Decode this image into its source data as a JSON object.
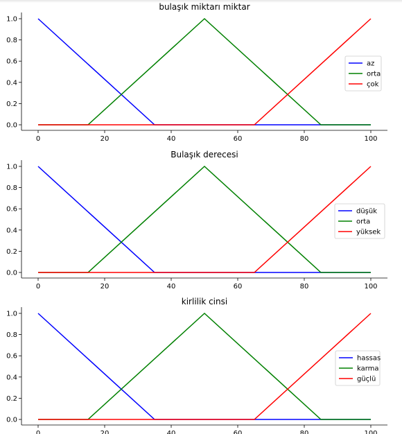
{
  "chart_data": [
    {
      "type": "line",
      "title": "bulaşık miktarı miktar",
      "x_ticks": [
        0,
        20,
        40,
        60,
        80,
        100
      ],
      "y_ticks": [
        "0.0",
        "0.2",
        "0.4",
        "0.6",
        "0.8",
        "1.0"
      ],
      "xlim": [
        0,
        100
      ],
      "ylim": [
        0,
        1
      ],
      "legend_position": "center-right",
      "series": [
        {
          "name": "az",
          "color": "#0000ff",
          "x": [
            0,
            35,
            100
          ],
          "y": [
            1,
            0,
            0
          ]
        },
        {
          "name": "orta",
          "color": "#008000",
          "x": [
            0,
            15,
            50,
            85,
            100
          ],
          "y": [
            0,
            0,
            1,
            0,
            0
          ]
        },
        {
          "name": "çok",
          "color": "#ff0000",
          "x": [
            0,
            65,
            100
          ],
          "y": [
            0,
            0,
            1
          ]
        }
      ]
    },
    {
      "type": "line",
      "title": "Bulaşık derecesi",
      "x_ticks": [
        0,
        20,
        40,
        60,
        80,
        100
      ],
      "y_ticks": [
        "0.0",
        "0.2",
        "0.4",
        "0.6",
        "0.8",
        "1.0"
      ],
      "xlim": [
        0,
        100
      ],
      "ylim": [
        0,
        1
      ],
      "legend_position": "center-right",
      "series": [
        {
          "name": "düşük",
          "color": "#0000ff",
          "x": [
            0,
            35,
            100
          ],
          "y": [
            1,
            0,
            0
          ]
        },
        {
          "name": "orta",
          "color": "#008000",
          "x": [
            0,
            15,
            50,
            85,
            100
          ],
          "y": [
            0,
            0,
            1,
            0,
            0
          ]
        },
        {
          "name": "yüksek",
          "color": "#ff0000",
          "x": [
            0,
            65,
            100
          ],
          "y": [
            0,
            0,
            1
          ]
        }
      ]
    },
    {
      "type": "line",
      "title": "kirlilik cinsi",
      "x_ticks": [
        0,
        20,
        40,
        60,
        80,
        100
      ],
      "y_ticks": [
        "0.0",
        "0.2",
        "0.4",
        "0.6",
        "0.8",
        "1.0"
      ],
      "xlim": [
        0,
        100
      ],
      "ylim": [
        0,
        1
      ],
      "legend_position": "center-right",
      "series": [
        {
          "name": "hassas",
          "color": "#0000ff",
          "x": [
            0,
            35,
            100
          ],
          "y": [
            1,
            0,
            0
          ]
        },
        {
          "name": "karma",
          "color": "#008000",
          "x": [
            0,
            15,
            50,
            85,
            100
          ],
          "y": [
            0,
            0,
            1,
            0,
            0
          ]
        },
        {
          "name": "güçlü",
          "color": "#ff0000",
          "x": [
            0,
            65,
            100
          ],
          "y": [
            0,
            0,
            1
          ]
        }
      ]
    }
  ]
}
